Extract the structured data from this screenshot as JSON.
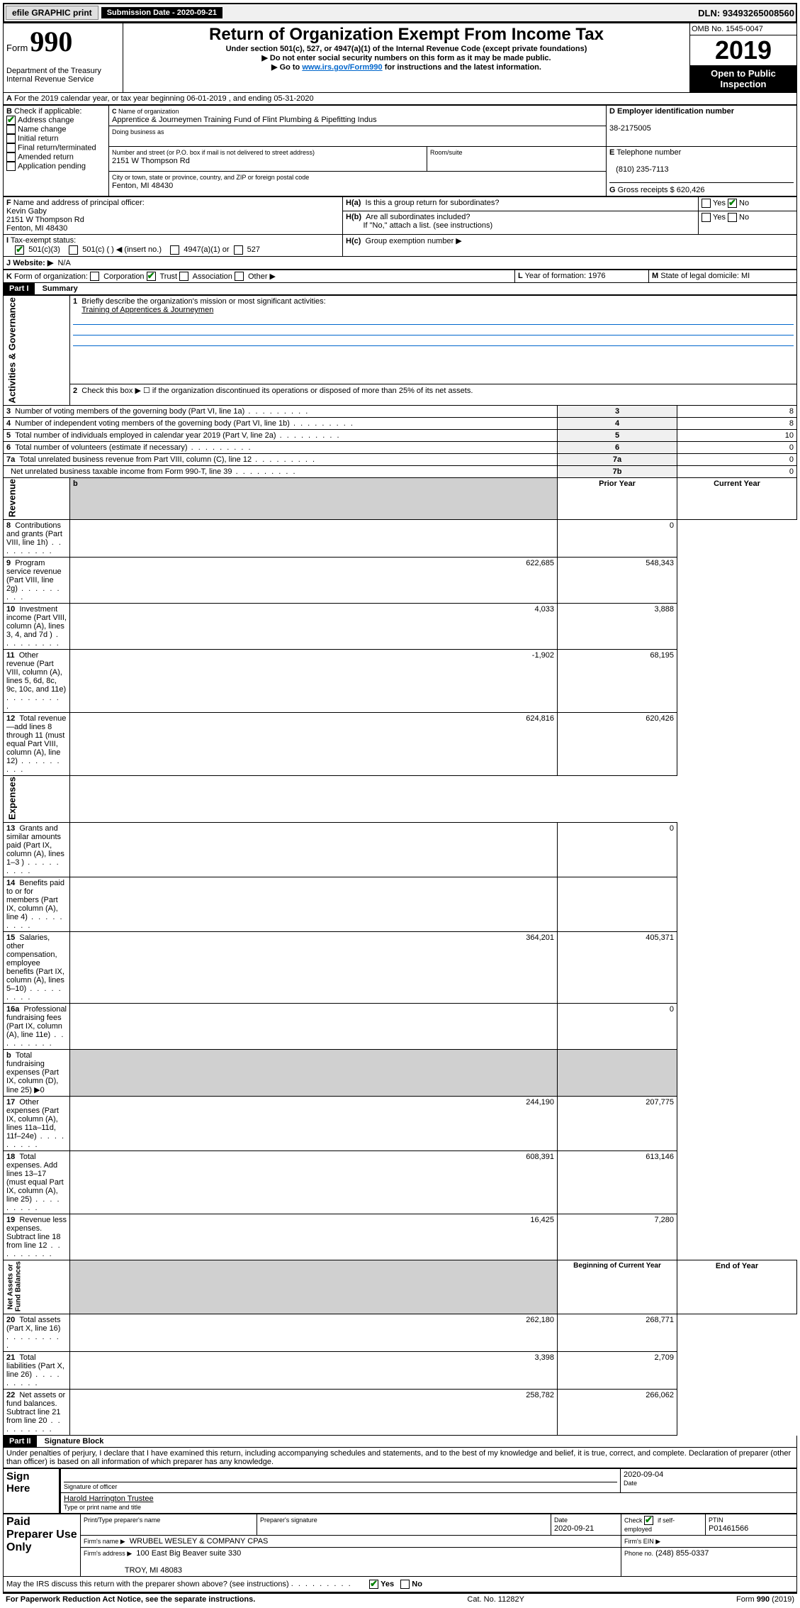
{
  "topbar": {
    "efile": "efile GRAPHIC print",
    "subdate_label": "Submission Date - 2020-09-21",
    "dln": "DLN: 93493265008560"
  },
  "header": {
    "formword": "Form",
    "formnum": "990",
    "dept": "Department of the Treasury\nInternal Revenue Service",
    "title": "Return of Organization Exempt From Income Tax",
    "subtitle": "Under section 501(c), 527, or 4947(a)(1) of the Internal Revenue Code (except private foundations)",
    "note1": "Do not enter social security numbers on this form as it may be made public.",
    "note2_pre": "Go to ",
    "note2_link": "www.irs.gov/Form990",
    "note2_post": " for instructions and the latest information.",
    "omb": "OMB No. 1545-0047",
    "year": "2019",
    "openpublic": "Open to Public Inspection"
  },
  "a_line": "For the 2019 calendar year, or tax year beginning 06-01-2019       , and ending 05-31-2020",
  "b": {
    "label": "Check if applicable:",
    "items": [
      "Address change",
      "Name change",
      "Initial return",
      "Final return/terminated",
      "Amended return",
      "Application pending"
    ],
    "checked_index": 0
  },
  "c": {
    "name_label": "Name of organization",
    "name": "Apprentice & Journeymen Training Fund of Flint Plumbing & Pipefitting Indus",
    "dba_label": "Doing business as",
    "addr_label": "Number and street (or P.O. box if mail is not delivered to street address)",
    "room_label": "Room/suite",
    "addr": "2151 W Thompson Rd",
    "city_label": "City or town, state or province, country, and ZIP or foreign postal code",
    "city": "Fenton, MI  48430"
  },
  "d": {
    "label": "Employer identification number",
    "value": "38-2175005"
  },
  "e": {
    "label": "Telephone number",
    "value": "(810) 235-7113"
  },
  "g": {
    "label": "Gross receipts $",
    "value": "620,426"
  },
  "f": {
    "label": "Name and address of principal officer:",
    "name": "Kevin Gaby",
    "addr1": "2151 W Thompson Rd",
    "addr2": "Fenton, MI  48430"
  },
  "h": {
    "a": "Is this a group return for subordinates?",
    "b": "Are all subordinates included?",
    "b_note": "If \"No,\" attach a list. (see instructions)",
    "c": "Group exemption number ▶"
  },
  "i": {
    "label": "Tax-exempt status:",
    "opt1": "501(c)(3)",
    "opt2": "501(c) (   ) ◀ (insert no.)",
    "opt3": "4947(a)(1) or",
    "opt4": "527"
  },
  "j": {
    "label": "Website: ▶",
    "value": "N/A"
  },
  "k": {
    "label": "Form of organization:",
    "opts": [
      "Corporation",
      "Trust",
      "Association",
      "Other ▶"
    ],
    "checked": 1
  },
  "l": {
    "label": "Year of formation:",
    "value": "1976"
  },
  "m": {
    "label": "State of legal domicile:",
    "value": "MI"
  },
  "part1": {
    "hdr": "Part I",
    "title": "Summary",
    "q1": "Briefly describe the organization's mission or most significant activities:",
    "q1_ans": "Training of Apprentices & Journeymen",
    "q2": "Check this box ▶ ☐  if the organization discontinued its operations or disposed of more than 25% of its net assets.",
    "rows_gov": [
      {
        "n": "3",
        "t": "Number of voting members of the governing body (Part VI, line 1a)",
        "i": "3",
        "v": "8"
      },
      {
        "n": "4",
        "t": "Number of independent voting members of the governing body (Part VI, line 1b)",
        "i": "4",
        "v": "8"
      },
      {
        "n": "5",
        "t": "Total number of individuals employed in calendar year 2019 (Part V, line 2a)",
        "i": "5",
        "v": "10"
      },
      {
        "n": "6",
        "t": "Total number of volunteers (estimate if necessary)",
        "i": "6",
        "v": "0"
      },
      {
        "n": "7a",
        "t": "Total unrelated business revenue from Part VIII, column (C), line 12",
        "i": "7a",
        "v": "0"
      },
      {
        "n": "",
        "t": "Net unrelated business taxable income from Form 990-T, line 39",
        "i": "7b",
        "v": "0"
      }
    ],
    "col_prior": "Prior Year",
    "col_curr": "Current Year",
    "rows_rev": [
      {
        "n": "8",
        "t": "Contributions and grants (Part VIII, line 1h)",
        "p": "",
        "c": "0"
      },
      {
        "n": "9",
        "t": "Program service revenue (Part VIII, line 2g)",
        "p": "622,685",
        "c": "548,343"
      },
      {
        "n": "10",
        "t": "Investment income (Part VIII, column (A), lines 3, 4, and 7d )",
        "p": "4,033",
        "c": "3,888"
      },
      {
        "n": "11",
        "t": "Other revenue (Part VIII, column (A), lines 5, 6d, 8c, 9c, 10c, and 11e)",
        "p": "-1,902",
        "c": "68,195"
      },
      {
        "n": "12",
        "t": "Total revenue—add lines 8 through 11 (must equal Part VIII, column (A), line 12)",
        "p": "624,816",
        "c": "620,426"
      }
    ],
    "rows_exp": [
      {
        "n": "13",
        "t": "Grants and similar amounts paid (Part IX, column (A), lines 1–3 )",
        "p": "",
        "c": "0"
      },
      {
        "n": "14",
        "t": "Benefits paid to or for members (Part IX, column (A), line 4)",
        "p": "",
        "c": ""
      },
      {
        "n": "15",
        "t": "Salaries, other compensation, employee benefits (Part IX, column (A), lines 5–10)",
        "p": "364,201",
        "c": "405,371"
      },
      {
        "n": "16a",
        "t": "Professional fundraising fees (Part IX, column (A), line 11e)",
        "p": "",
        "c": "0"
      },
      {
        "n": "b",
        "t": "Total fundraising expenses (Part IX, column (D), line 25) ▶0",
        "p": "shade",
        "c": "shade"
      },
      {
        "n": "17",
        "t": "Other expenses (Part IX, column (A), lines 11a–11d, 11f–24e)",
        "p": "244,190",
        "c": "207,775"
      },
      {
        "n": "18",
        "t": "Total expenses. Add lines 13–17 (must equal Part IX, column (A), line 25)",
        "p": "608,391",
        "c": "613,146"
      },
      {
        "n": "19",
        "t": "Revenue less expenses. Subtract line 18 from line 12",
        "p": "16,425",
        "c": "7,280"
      }
    ],
    "col_beg": "Beginning of Current Year",
    "col_end": "End of Year",
    "rows_net": [
      {
        "n": "20",
        "t": "Total assets (Part X, line 16)",
        "p": "262,180",
        "c": "268,771"
      },
      {
        "n": "21",
        "t": "Total liabilities (Part X, line 26)",
        "p": "3,398",
        "c": "2,709"
      },
      {
        "n": "22",
        "t": "Net assets or fund balances. Subtract line 21 from line 20",
        "p": "258,782",
        "c": "266,062"
      }
    ]
  },
  "part2": {
    "hdr": "Part II",
    "title": "Signature Block",
    "perjury": "Under penalties of perjury, I declare that I have examined this return, including accompanying schedules and statements, and to the best of my knowledge and belief, it is true, correct, and complete. Declaration of preparer (other than officer) is based on all information of which preparer has any knowledge.",
    "sign_here": "Sign Here",
    "sig_officer": "Signature of officer",
    "sig_date": "2020-09-04",
    "date_label": "Date",
    "officer_name": "Harold Harrington  Trustee",
    "type_name": "Type or print name and title",
    "paid": "Paid Preparer Use Only",
    "prep_name_label": "Print/Type preparer's name",
    "prep_sig_label": "Preparer's signature",
    "prep_date_label": "Date",
    "prep_date": "2020-09-21",
    "check_ifself": "Check ☑ if self-employed",
    "ptin_label": "PTIN",
    "ptin": "P01461566",
    "firm_name_label": "Firm's name     ▶",
    "firm_name": "WRUBEL WESLEY & COMPANY CPAS",
    "firm_ein_label": "Firm's EIN ▶",
    "firm_addr_label": "Firm's address ▶",
    "firm_addr1": "100 East Big Beaver suite 330",
    "firm_addr2": "TROY, MI  48083",
    "phone_label": "Phone no.",
    "phone": "(248) 855-0337",
    "discuss": "May the IRS discuss this return with the preparer shown above? (see instructions)"
  },
  "footer": {
    "left": "For Paperwork Reduction Act Notice, see the separate instructions.",
    "mid": "Cat. No. 11282Y",
    "right": "Form 990 (2019)"
  }
}
